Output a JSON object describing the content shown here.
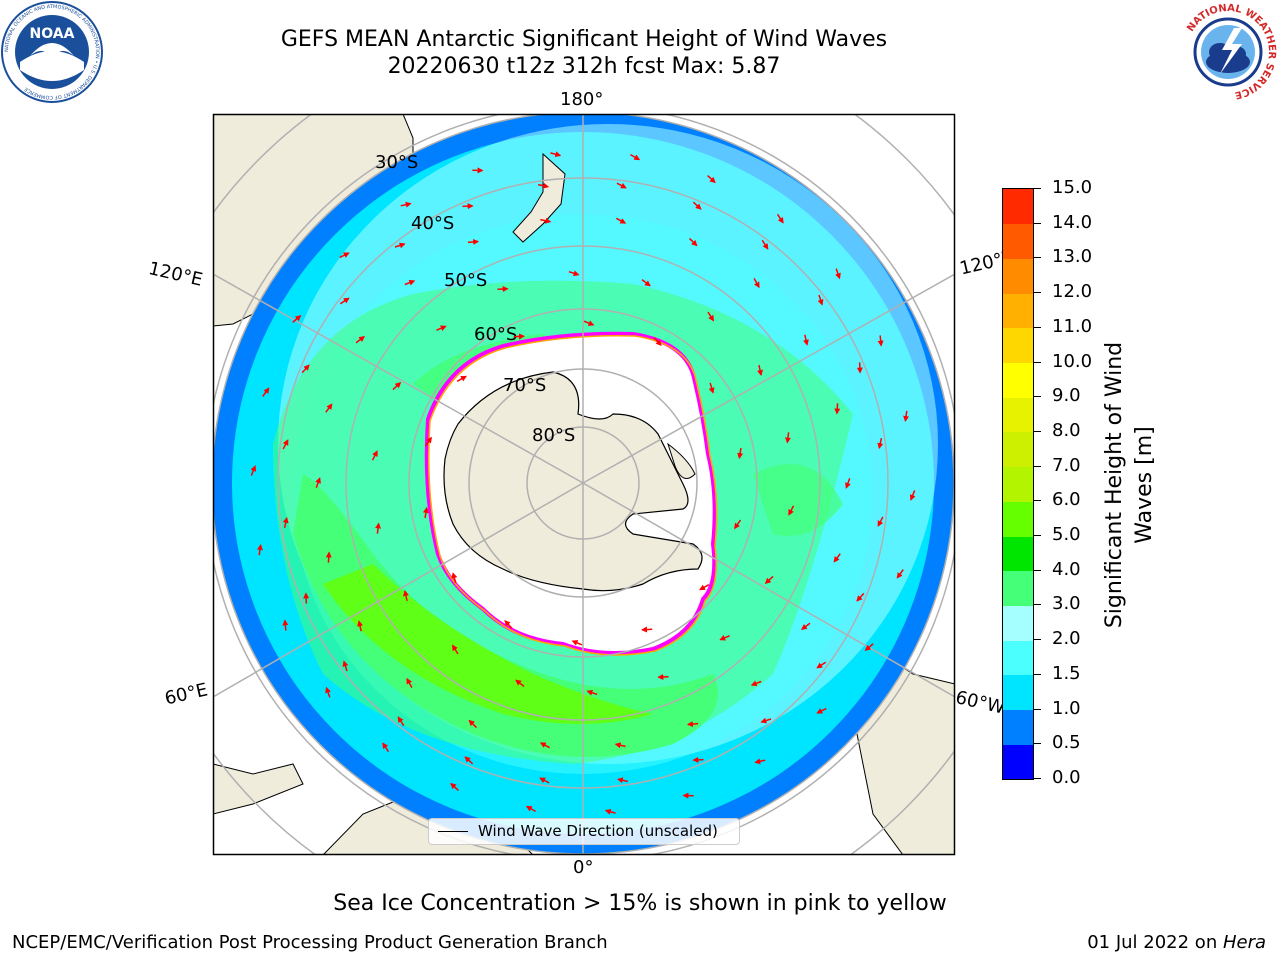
{
  "title": {
    "line1": "GEFS MEAN Antarctic Significant Height of Wind Waves",
    "line2": "20220630 t12z 312h fcst   Max: 5.87"
  },
  "logos": {
    "noaa": {
      "center_text": "NOAA",
      "ring_text": "NATIONAL OCEANIC AND ATMOSPHERIC ADMINISTRATION • U.S. DEPARTMENT OF COMMERCE",
      "color": "#1a4f9c"
    },
    "nws": {
      "ring_text": "NATIONAL WEATHER SERVICE",
      "color": "#d42a2a"
    }
  },
  "map": {
    "projection": "south-polar-stereographic",
    "longitude_labels": {
      "top": "180°",
      "bottom": "0°",
      "upper_left": "120°E",
      "lower_left": "60°E",
      "upper_right": "120°W",
      "lower_right": "60°W"
    },
    "latitude_labels": [
      "30°S",
      "40°S",
      "50°S",
      "60°S",
      "70°S",
      "80°S"
    ],
    "legend": "Wind Wave Direction (unscaled)",
    "arrow_color": "#ff0000",
    "land_color": "#efecdc",
    "ice_edge_colors": [
      "#ff00ff",
      "#ffa500",
      "#ffff00"
    ]
  },
  "colorbar": {
    "label": "Significant Height of Wind Waves [m]",
    "ticks": [
      "0.0",
      "0.5",
      "1.0",
      "1.5",
      "2.0",
      "3.0",
      "4.0",
      "5.0",
      "6.0",
      "7.0",
      "8.0",
      "9.0",
      "10.0",
      "11.0",
      "12.0",
      "13.0",
      "14.0",
      "15.0"
    ],
    "colors": [
      "#0000ff",
      "#0080ff",
      "#00e5ff",
      "#4cffff",
      "#a6ffff",
      "#44ff77",
      "#00e600",
      "#66ff00",
      "#b3f500",
      "#ccf000",
      "#e6f200",
      "#ffff00",
      "#ffd700",
      "#ffb000",
      "#ff8c00",
      "#ff5a00",
      "#ff2a00"
    ]
  },
  "note": "Sea Ice Concentration > 15% is shown in pink to yellow",
  "footer": {
    "left": "NCEP/EMC/Verification Post Processing Product Generation Branch",
    "right_date": "01 Jul 2022",
    "right_on": " on ",
    "right_machine": "Hera"
  }
}
